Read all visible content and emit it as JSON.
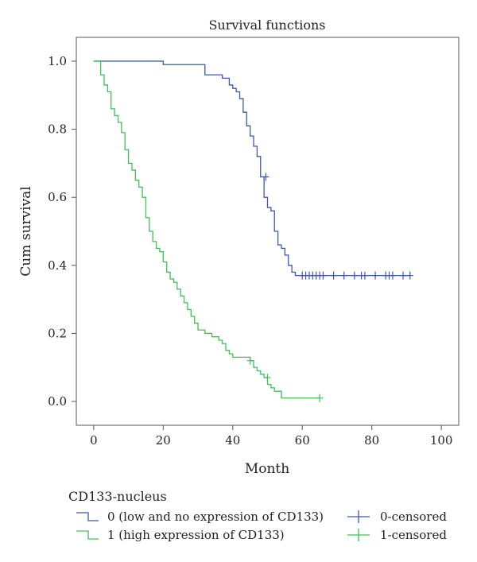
{
  "chart_data": {
    "type": "line",
    "title": "Survival functions",
    "xlabel": "Month",
    "ylabel": "Cum survival",
    "xlim": [
      -5,
      105
    ],
    "ylim": [
      -0.07,
      1.07
    ],
    "x_ticks": [
      "0",
      "20",
      "40",
      "60",
      "80",
      "100"
    ],
    "y_ticks": [
      "0.0",
      "0.2",
      "0.4",
      "0.6",
      "0.8",
      "1.0"
    ],
    "grid": false,
    "legend": {
      "title": "CD133-nucleus",
      "placement": "bottom",
      "entries": [
        {
          "label": "0 (low and no expression of CD133)",
          "kind": "step",
          "series": 0
        },
        {
          "label": "1 (high expression of CD133)",
          "kind": "step",
          "series": 1
        },
        {
          "label": "0-censored",
          "kind": "censor",
          "series": 0
        },
        {
          "label": "1-censored",
          "kind": "censor",
          "series": 1
        }
      ]
    },
    "series": [
      {
        "name": "0 (low and no expression of CD133)",
        "color": "#3f5aa9",
        "x": [
          0,
          20,
          32,
          37,
          39,
          40,
          41,
          42,
          43,
          44,
          45,
          46,
          47,
          48,
          49,
          50,
          51,
          52,
          53,
          54,
          55,
          56,
          57,
          58,
          59,
          60,
          91
        ],
        "y": [
          1.0,
          0.99,
          0.96,
          0.95,
          0.93,
          0.92,
          0.91,
          0.89,
          0.85,
          0.81,
          0.78,
          0.75,
          0.72,
          0.66,
          0.6,
          0.57,
          0.56,
          0.5,
          0.46,
          0.45,
          0.43,
          0.4,
          0.38,
          0.37,
          0.37,
          0.37,
          0.37
        ],
        "censored": [
          {
            "x": 49.5,
            "y": 0.66
          },
          {
            "x": 60,
            "y": 0.37
          },
          {
            "x": 61,
            "y": 0.37
          },
          {
            "x": 62,
            "y": 0.37
          },
          {
            "x": 63,
            "y": 0.37
          },
          {
            "x": 64,
            "y": 0.37
          },
          {
            "x": 65,
            "y": 0.37
          },
          {
            "x": 66,
            "y": 0.37
          },
          {
            "x": 69,
            "y": 0.37
          },
          {
            "x": 72,
            "y": 0.37
          },
          {
            "x": 75,
            "y": 0.37
          },
          {
            "x": 77,
            "y": 0.37
          },
          {
            "x": 78,
            "y": 0.37
          },
          {
            "x": 81,
            "y": 0.37
          },
          {
            "x": 84,
            "y": 0.37
          },
          {
            "x": 85,
            "y": 0.37
          },
          {
            "x": 86,
            "y": 0.37
          },
          {
            "x": 89,
            "y": 0.37
          },
          {
            "x": 91,
            "y": 0.37
          }
        ]
      },
      {
        "name": "1 (high expression of CD133)",
        "color": "#40c057",
        "x": [
          0,
          2,
          3,
          4,
          5,
          6,
          7,
          8,
          9,
          10,
          11,
          12,
          13,
          14,
          15,
          16,
          17,
          18,
          19,
          20,
          21,
          22,
          23,
          24,
          25,
          26,
          27,
          28,
          29,
          30,
          32,
          34,
          36,
          37,
          38,
          39,
          40,
          45,
          46,
          47,
          48,
          49,
          50,
          51,
          52,
          54,
          65
        ],
        "y": [
          1.0,
          0.96,
          0.93,
          0.91,
          0.86,
          0.84,
          0.82,
          0.79,
          0.74,
          0.7,
          0.68,
          0.65,
          0.63,
          0.6,
          0.54,
          0.5,
          0.47,
          0.45,
          0.44,
          0.41,
          0.38,
          0.36,
          0.35,
          0.33,
          0.31,
          0.29,
          0.27,
          0.25,
          0.23,
          0.21,
          0.2,
          0.19,
          0.18,
          0.17,
          0.15,
          0.14,
          0.13,
          0.12,
          0.1,
          0.09,
          0.08,
          0.07,
          0.05,
          0.04,
          0.03,
          0.01,
          0.01
        ],
        "censored": [
          {
            "x": 45,
            "y": 0.12
          },
          {
            "x": 50,
            "y": 0.07
          },
          {
            "x": 65,
            "y": 0.01
          }
        ]
      }
    ]
  }
}
